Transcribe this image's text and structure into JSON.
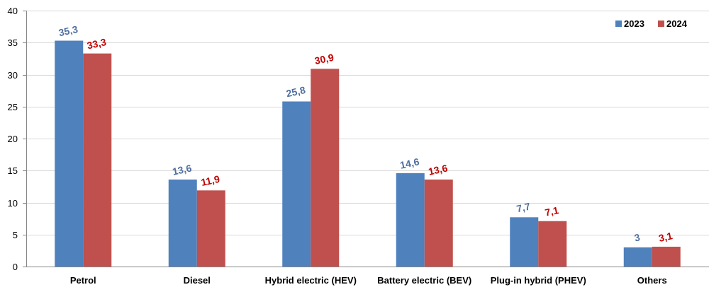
{
  "chart_data": {
    "type": "bar",
    "title": "",
    "xlabel": "",
    "ylabel": "",
    "ylim": [
      0,
      40
    ],
    "ytick_step": 5,
    "grid": true,
    "legend_position": "top-right",
    "categories": [
      "Petrol",
      "Diesel",
      "Hybrid electric (HEV)",
      "Battery electric (BEV)",
      "Plug-in hybrid (PHEV)",
      "Others"
    ],
    "series": [
      {
        "name": "2023",
        "color": "#4F81BD",
        "label_color": "#4F6FA0",
        "values": [
          35.3,
          13.6,
          25.8,
          14.6,
          7.7,
          3
        ],
        "data_labels": [
          "35,3",
          "13,6",
          "25,8",
          "14,6",
          "7,7",
          "3"
        ]
      },
      {
        "name": "2024",
        "color": "#C0504D",
        "label_color": "#C00000",
        "values": [
          33.3,
          11.9,
          30.9,
          13.6,
          7.1,
          3.1
        ],
        "data_labels": [
          "33,3",
          "11,9",
          "30,9",
          "13,6",
          "7,1",
          "3,1"
        ]
      }
    ]
  }
}
